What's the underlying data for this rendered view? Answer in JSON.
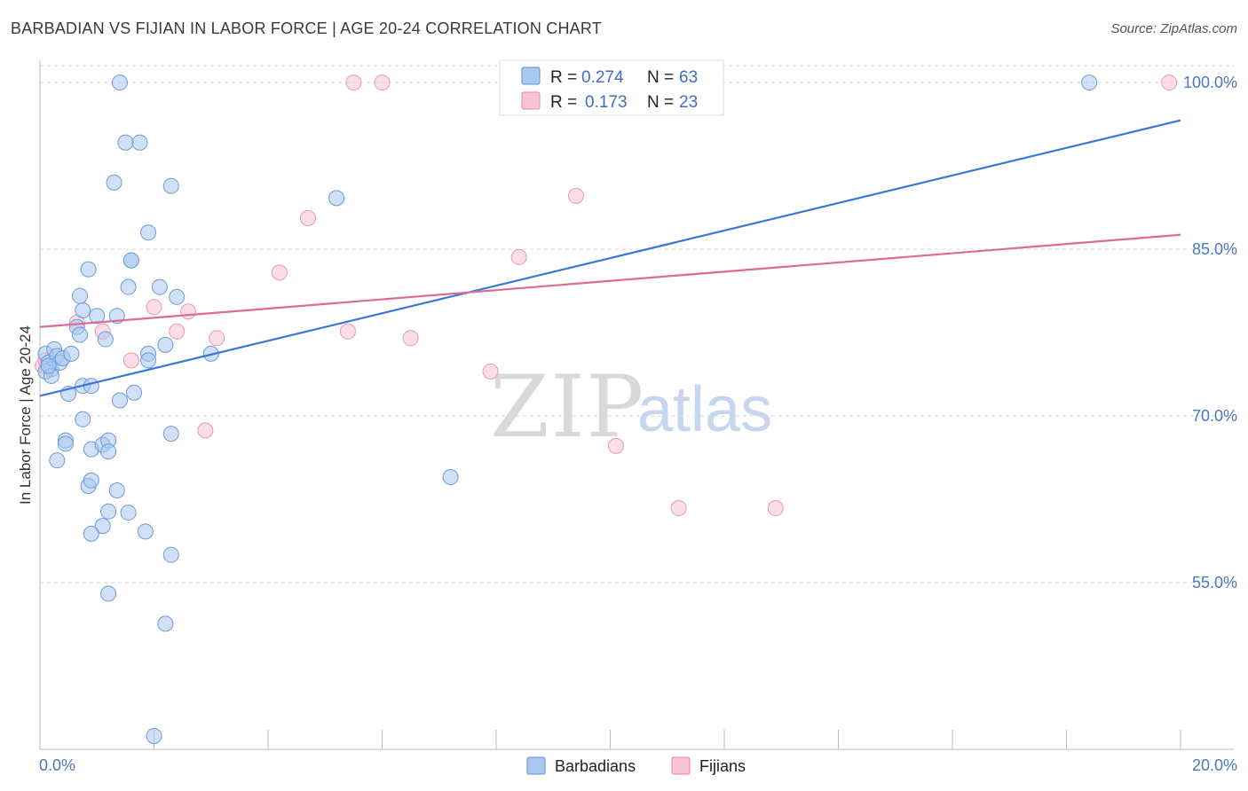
{
  "header": {
    "title": "BARBADIAN VS FIJIAN IN LABOR FORCE | AGE 20-24 CORRELATION CHART",
    "source": "Source: ZipAtlas.com"
  },
  "watermark": {
    "zip": "ZIP",
    "atlas": "atlas"
  },
  "legend": {
    "rows": [
      {
        "r_label": "R =",
        "r_value": "0.274",
        "n_label": "N =",
        "n_value": "63",
        "color": "#a9c8f0",
        "stroke": "#5b8fd6"
      },
      {
        "r_label": "R =",
        "r_value": "0.173",
        "n_label": "N =",
        "n_value": "23",
        "color": "#f8c3d3",
        "stroke": "#e6859f"
      }
    ]
  },
  "bottom_legend": [
    {
      "label": "Barbadians",
      "color": "#a9c8f0",
      "stroke": "#5b8fd6"
    },
    {
      "label": "Fijians",
      "color": "#f8c3d3",
      "stroke": "#e6859f"
    }
  ],
  "chart_data": {
    "type": "scatter",
    "title": "BARBADIAN VS FIJIAN IN LABOR FORCE | AGE 20-24 CORRELATION CHART",
    "xlabel": "",
    "ylabel": "In Labor Force | Age 20-24",
    "xlim": [
      0,
      20
    ],
    "ylim": [
      40,
      102
    ],
    "x_tick_labels": [
      "0.0%",
      "20.0%"
    ],
    "y_ticks": [
      55,
      70,
      85,
      100
    ],
    "y_tick_labels": [
      "55.0%",
      "70.0%",
      "85.0%",
      "100.0%"
    ],
    "grid": true,
    "colors": {
      "barbadians": "#3a78d4",
      "fijians": "#e06a96"
    },
    "series": [
      {
        "name": "Barbadians",
        "points": [
          [
            0.1,
            75.6
          ],
          [
            0.15,
            74.8
          ],
          [
            0.2,
            74.2
          ],
          [
            0.1,
            74.0
          ],
          [
            0.25,
            76.0
          ],
          [
            0.3,
            75.4
          ],
          [
            0.35,
            74.8
          ],
          [
            0.2,
            73.6
          ],
          [
            0.15,
            74.5
          ],
          [
            0.4,
            75.2
          ],
          [
            0.55,
            75.6
          ],
          [
            0.7,
            80.8
          ],
          [
            0.75,
            79.5
          ],
          [
            0.85,
            83.2
          ],
          [
            0.65,
            78.0
          ],
          [
            0.7,
            77.3
          ],
          [
            1.0,
            79.0
          ],
          [
            1.15,
            76.9
          ],
          [
            1.35,
            79.0
          ],
          [
            1.55,
            81.6
          ],
          [
            1.6,
            84.0
          ],
          [
            1.6,
            84.0
          ],
          [
            1.9,
            75.6
          ],
          [
            1.9,
            75.0
          ],
          [
            2.1,
            81.6
          ],
          [
            2.2,
            76.4
          ],
          [
            2.4,
            80.7
          ],
          [
            0.5,
            72.0
          ],
          [
            0.75,
            72.7
          ],
          [
            0.9,
            72.7
          ],
          [
            0.75,
            69.7
          ],
          [
            1.4,
            71.4
          ],
          [
            1.65,
            72.1
          ],
          [
            0.45,
            67.8
          ],
          [
            0.45,
            67.5
          ],
          [
            0.9,
            67.0
          ],
          [
            1.1,
            67.4
          ],
          [
            1.2,
            67.8
          ],
          [
            1.2,
            66.8
          ],
          [
            0.3,
            66.0
          ],
          [
            0.85,
            63.7
          ],
          [
            0.9,
            64.2
          ],
          [
            1.35,
            63.3
          ],
          [
            1.2,
            61.4
          ],
          [
            1.55,
            61.3
          ],
          [
            1.1,
            60.1
          ],
          [
            0.9,
            59.4
          ],
          [
            1.85,
            59.6
          ],
          [
            2.3,
            68.4
          ],
          [
            3.0,
            75.6
          ],
          [
            2.3,
            90.7
          ],
          [
            1.5,
            94.6
          ],
          [
            1.75,
            94.6
          ],
          [
            1.3,
            91.0
          ],
          [
            1.4,
            100.0
          ],
          [
            1.9,
            86.5
          ],
          [
            5.2,
            89.6
          ],
          [
            7.2,
            64.5
          ],
          [
            18.4,
            100.0
          ],
          [
            2.3,
            57.5
          ],
          [
            1.2,
            54.0
          ],
          [
            2.2,
            51.3
          ],
          [
            2.0,
            41.2
          ]
        ]
      },
      {
        "name": "Fijians",
        "points": [
          [
            0.05,
            74.5
          ],
          [
            0.1,
            75.0
          ],
          [
            0.65,
            78.4
          ],
          [
            1.1,
            77.6
          ],
          [
            1.6,
            75.0
          ],
          [
            2.0,
            79.8
          ],
          [
            2.4,
            77.6
          ],
          [
            2.6,
            79.4
          ],
          [
            3.1,
            77.0
          ],
          [
            2.9,
            68.7
          ],
          [
            4.2,
            82.9
          ],
          [
            4.7,
            87.8
          ],
          [
            5.4,
            77.6
          ],
          [
            5.5,
            100.0
          ],
          [
            6.0,
            100.0
          ],
          [
            6.5,
            77.0
          ],
          [
            7.9,
            74.0
          ],
          [
            8.4,
            84.3
          ],
          [
            9.4,
            89.8
          ],
          [
            10.1,
            67.3
          ],
          [
            11.2,
            61.7
          ],
          [
            12.9,
            61.7
          ],
          [
            19.8,
            100.0
          ]
        ]
      }
    ],
    "trend_lines": [
      {
        "name": "Barbadians",
        "from": [
          0,
          71.8
        ],
        "to": [
          20,
          96.6
        ]
      },
      {
        "name": "Fijians",
        "from": [
          0,
          78.0
        ],
        "to": [
          20,
          86.3
        ]
      }
    ]
  }
}
